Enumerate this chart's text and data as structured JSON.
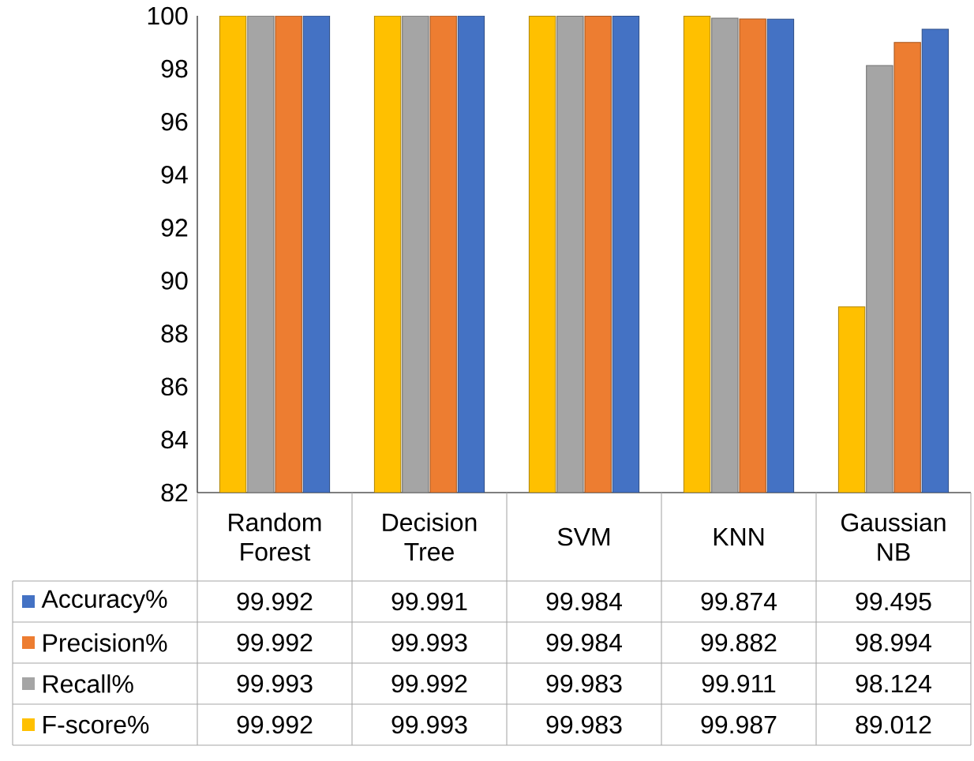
{
  "chart_data": {
    "type": "bar",
    "categories": [
      "Random Forest",
      "Decision Tree",
      "SVM",
      "KNN",
      "Gaussian NB"
    ],
    "series": [
      {
        "name": "Accuracy%",
        "color": "#4472c4",
        "values": [
          99.992,
          99.991,
          99.984,
          99.874,
          99.495
        ]
      },
      {
        "name": "Precision%",
        "color": "#ed7d31",
        "values": [
          99.992,
          99.993,
          99.984,
          99.882,
          98.994
        ]
      },
      {
        "name": "Recall%",
        "color": "#a5a5a5",
        "values": [
          99.993,
          99.992,
          99.983,
          99.911,
          98.124
        ]
      },
      {
        "name": "F-score%",
        "color": "#ffc000",
        "values": [
          99.992,
          99.993,
          99.983,
          99.987,
          89.012
        ]
      }
    ],
    "ylim": [
      82,
      100
    ],
    "yticks": [
      82,
      84,
      86,
      88,
      90,
      92,
      94,
      96,
      98,
      100
    ],
    "data_labels": true,
    "legend": "bottom left"
  }
}
